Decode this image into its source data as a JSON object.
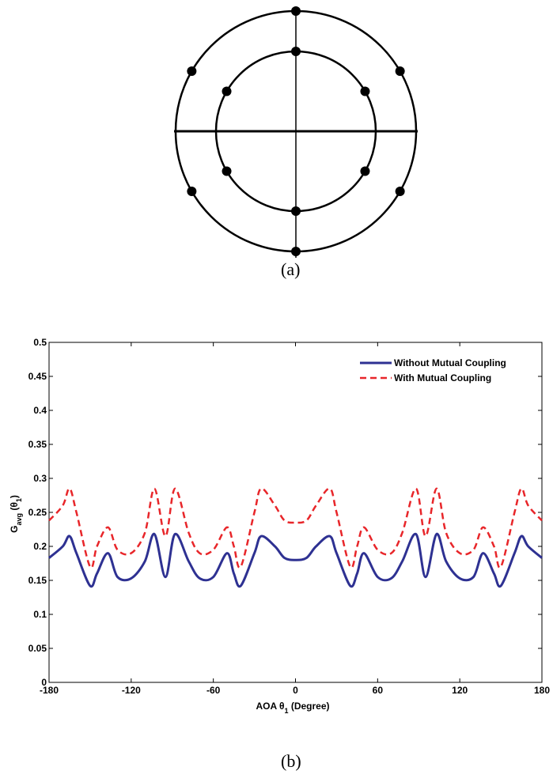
{
  "panel_a": {
    "caption": "(a)"
  },
  "panel_b": {
    "caption": "(b)"
  },
  "chart_data": [
    {
      "type": "diagram",
      "elements_inner_ring": 6,
      "elements_outer_ring": 6
    },
    {
      "type": "line",
      "xlabel": "AOA θ1 (Degree)",
      "ylabel": "Gavg (θ1)",
      "xlim": [
        -180,
        180
      ],
      "ylim": [
        0,
        0.5
      ],
      "xticks": [
        -180,
        -120,
        -60,
        0,
        60,
        120,
        180
      ],
      "yticks": [
        "0",
        "0.05",
        "0.1",
        "0.15",
        "0.2",
        "0.25",
        "0.3",
        "0.35",
        "0.4",
        "0.45",
        "0.5"
      ],
      "grid": false,
      "legend_position": "top-right",
      "x": [
        -180,
        -170,
        -165,
        -160,
        -150,
        -145,
        -137,
        -130,
        -120,
        -110,
        -103,
        -95,
        -88,
        -78,
        -70,
        -60,
        -50,
        -45,
        -40,
        -30,
        -25,
        -15,
        -8,
        0,
        8,
        15,
        25,
        30,
        40,
        45,
        50,
        60,
        70,
        78,
        88,
        95,
        103,
        110,
        120,
        130,
        137,
        145,
        150,
        160,
        165,
        170,
        180
      ],
      "series": [
        {
          "name": "Without Mutual Coupling",
          "color": "#2e3192",
          "style": "solid",
          "values": [
            0.183,
            0.2,
            0.215,
            0.19,
            0.142,
            0.16,
            0.19,
            0.155,
            0.153,
            0.178,
            0.218,
            0.155,
            0.218,
            0.178,
            0.153,
            0.155,
            0.19,
            0.16,
            0.142,
            0.19,
            0.215,
            0.2,
            0.183,
            0.18,
            0.183,
            0.2,
            0.215,
            0.19,
            0.142,
            0.16,
            0.19,
            0.155,
            0.153,
            0.178,
            0.218,
            0.155,
            0.218,
            0.178,
            0.153,
            0.155,
            0.19,
            0.16,
            0.142,
            0.19,
            0.215,
            0.2,
            0.183
          ]
        },
        {
          "name": "With Mutual Coupling",
          "color": "#e8262a",
          "style": "dashed",
          "values": [
            0.238,
            0.26,
            0.285,
            0.25,
            0.17,
            0.2,
            0.228,
            0.195,
            0.19,
            0.22,
            0.285,
            0.215,
            0.285,
            0.22,
            0.19,
            0.195,
            0.228,
            0.2,
            0.17,
            0.25,
            0.285,
            0.26,
            0.238,
            0.235,
            0.238,
            0.26,
            0.285,
            0.25,
            0.17,
            0.2,
            0.228,
            0.195,
            0.19,
            0.22,
            0.285,
            0.215,
            0.285,
            0.22,
            0.19,
            0.195,
            0.228,
            0.2,
            0.17,
            0.25,
            0.285,
            0.26,
            0.238
          ]
        }
      ]
    }
  ]
}
